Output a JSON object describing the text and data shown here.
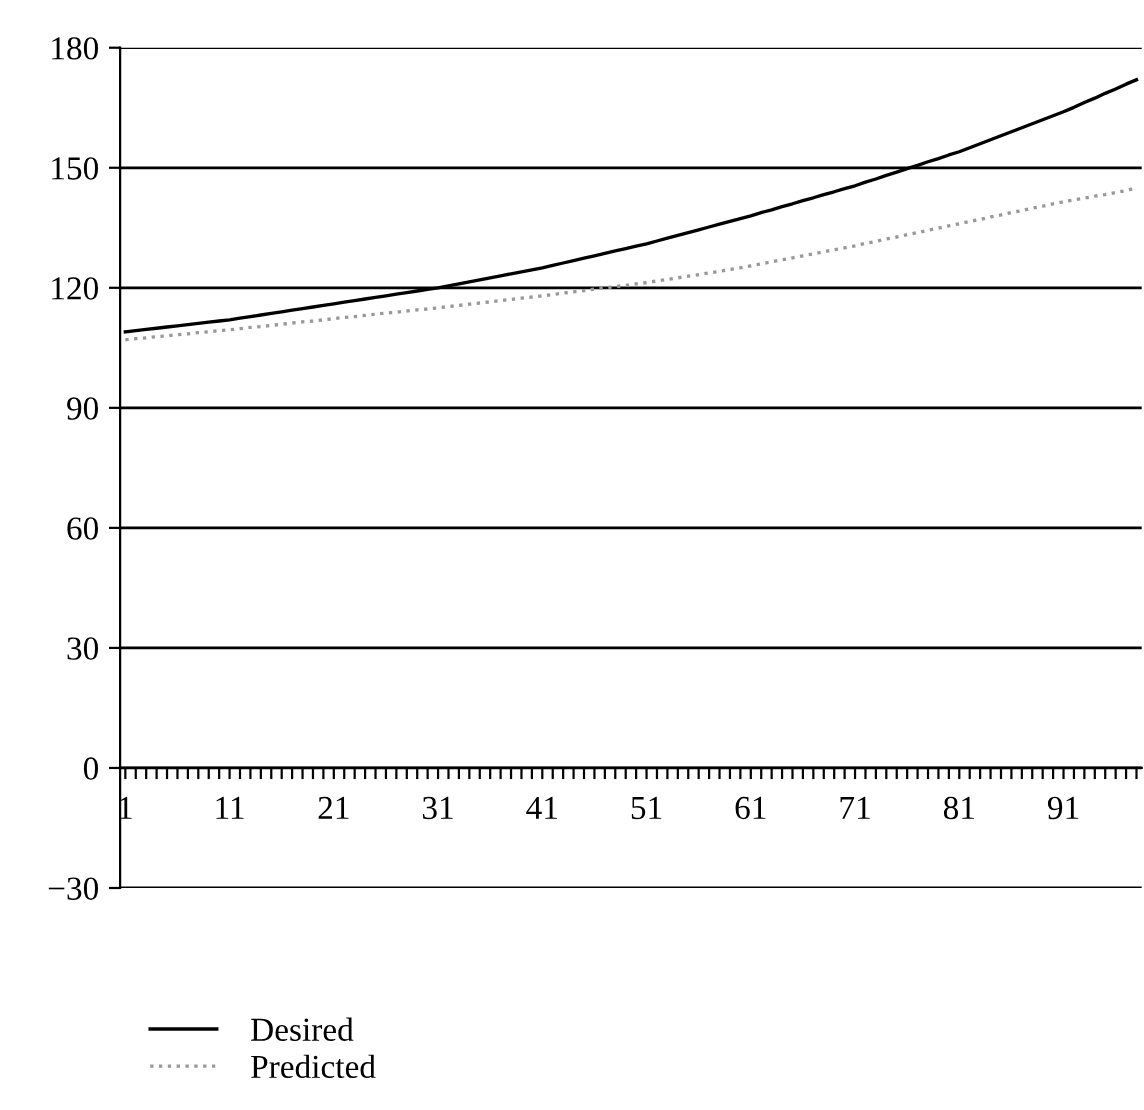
{
  "chart_data": {
    "type": "line",
    "categories": [
      "1",
      null,
      null,
      null,
      null,
      null,
      null,
      null,
      null,
      null,
      "11",
      null,
      null,
      null,
      null,
      null,
      null,
      null,
      null,
      null,
      "21",
      null,
      null,
      null,
      null,
      null,
      null,
      null,
      null,
      null,
      "31",
      null,
      null,
      null,
      null,
      null,
      null,
      null,
      null,
      null,
      "41",
      null,
      null,
      null,
      null,
      null,
      null,
      null,
      null,
      null,
      "51",
      null,
      null,
      null,
      null,
      null,
      null,
      null,
      null,
      null,
      "61",
      null,
      null,
      null,
      null,
      null,
      null,
      null,
      null,
      null,
      "71",
      null,
      null,
      null,
      null,
      null,
      null,
      null,
      null,
      null,
      "81",
      null,
      null,
      null,
      null,
      null,
      null,
      null,
      null,
      null,
      "91",
      null,
      null,
      null,
      null,
      null,
      null,
      null
    ],
    "series": [
      {
        "name": "Desired",
        "color": "#000000",
        "line_style": "solid",
        "values": [
          109,
          109.3,
          109.6,
          109.9,
          110.2,
          110.5,
          110.8,
          111.1,
          111.4,
          111.7,
          112,
          112.4,
          112.8,
          113.2,
          113.6,
          114,
          114.4,
          114.8,
          115.2,
          115.6,
          116,
          116.4,
          116.8,
          117.2,
          117.6,
          118,
          118.4,
          118.8,
          119.2,
          119.6,
          120,
          120.5,
          121,
          121.5,
          122,
          122.5,
          123,
          123.5,
          124,
          124.5,
          125,
          125.6,
          126.2,
          126.8,
          127.4,
          128,
          128.6,
          129.2,
          129.8,
          130.4,
          131,
          131.7,
          132.4,
          133.1,
          133.8,
          134.5,
          135.2,
          135.9,
          136.6,
          137.3,
          138,
          138.8,
          139.5,
          140.3,
          141,
          141.8,
          142.5,
          143.3,
          144,
          144.8,
          145.5,
          146.4,
          147.2,
          148.1,
          148.9,
          149.8,
          150.6,
          151.5,
          152.3,
          153.2,
          154,
          155,
          156,
          157,
          158,
          159,
          160,
          161,
          162,
          163,
          164,
          165.1,
          166.3,
          167.4,
          168.6,
          169.7,
          170.9,
          172
        ]
      },
      {
        "name": "Predicted",
        "color": "#999999",
        "line_style": "dotted",
        "values": [
          107,
          107.3,
          107.5,
          107.8,
          108,
          108.3,
          108.5,
          108.8,
          109,
          109.3,
          109.5,
          109.8,
          110.1,
          110.3,
          110.6,
          110.9,
          111.2,
          111.5,
          111.7,
          112,
          112.3,
          112.6,
          112.8,
          113.1,
          113.4,
          113.7,
          113.9,
          114.2,
          114.5,
          114.7,
          115,
          115.3,
          115.6,
          115.9,
          116.2,
          116.5,
          116.8,
          117.1,
          117.4,
          117.7,
          118,
          118.3,
          118.7,
          119,
          119.3,
          119.7,
          120,
          120.3,
          120.6,
          121,
          121.3,
          121.7,
          122.1,
          122.5,
          122.9,
          123.3,
          123.7,
          124.1,
          124.6,
          125,
          125.5,
          126,
          126.5,
          127,
          127.5,
          128,
          128.5,
          129,
          129.5,
          130,
          130.5,
          131.1,
          131.6,
          132.2,
          132.7,
          133.3,
          133.8,
          134.4,
          134.9,
          135.5,
          136,
          136.6,
          137.1,
          137.7,
          138.2,
          138.8,
          139.3,
          139.9,
          140.4,
          141,
          141.5,
          142,
          142.4,
          142.9,
          143.3,
          143.8,
          144.3,
          145
        ]
      }
    ],
    "ylim": [
      -30,
      180
    ],
    "yticks": [
      {
        "value": -30,
        "label": "−30"
      },
      0,
      30,
      60,
      90,
      120,
      150,
      180
    ],
    "grid": "y",
    "legend": "bottom"
  }
}
